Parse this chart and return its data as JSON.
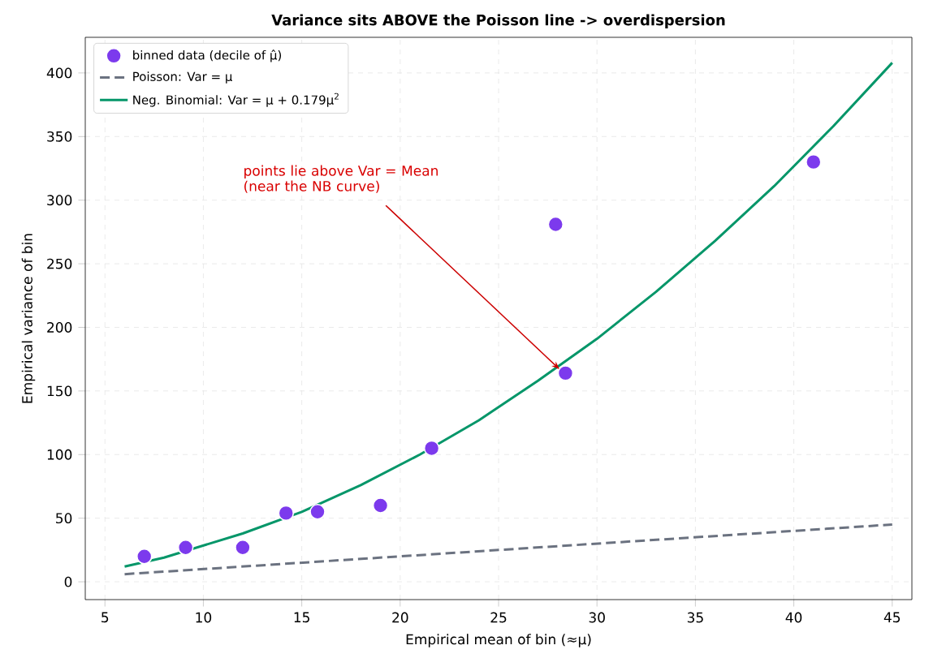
{
  "chart_data": {
    "type": "scatter",
    "title": "Variance sits ABOVE the Poisson line  ->  overdispersion",
    "xlabel": "Empirical mean of bin  (≈μ)",
    "ylabel": "Empirical variance of bin",
    "series": [
      {
        "name": "binned data (decile of μ̂)",
        "color": "#7c3aed",
        "marker": "circle",
        "x": [
          7.0,
          9.1,
          12.0,
          14.2,
          15.8,
          19.0,
          21.6,
          27.9,
          28.4,
          41.0
        ],
        "values": [
          20,
          27,
          27,
          54,
          55,
          60,
          105,
          281,
          164,
          330
        ]
      },
      {
        "name": "Poisson:  Var = μ",
        "type": "line",
        "color": "#6b7280",
        "line_style": "dashed",
        "marker": "none",
        "x": [
          6,
          45
        ],
        "values": [
          6,
          45
        ]
      },
      {
        "name": "Neg. Binomial:  Var = μ + 0.179μ$^{2}$",
        "type": "line",
        "color": "#059669",
        "line_style": "solid",
        "marker": "none",
        "x": [
          6,
          8,
          12,
          15,
          18,
          21,
          24,
          27,
          30,
          33,
          36,
          39,
          42,
          45
        ],
        "values": [
          12,
          19,
          38,
          55,
          76,
          100,
          127,
          158,
          191,
          228,
          268,
          311,
          358,
          408
        ]
      }
    ],
    "annotations": [
      {
        "text": "points lie above Var = Mean (near the NB curve)",
        "x": 28.1,
        "y": 167
      }
    ],
    "xlim": [
      4.0,
      46.0
    ],
    "ylim": [
      -14,
      428
    ],
    "xticks": [
      5,
      10,
      15,
      20,
      25,
      30,
      35,
      40,
      45
    ],
    "yticks": [
      0,
      50,
      100,
      150,
      200,
      250,
      300,
      350,
      400
    ],
    "grid": true,
    "legend": "top left"
  }
}
